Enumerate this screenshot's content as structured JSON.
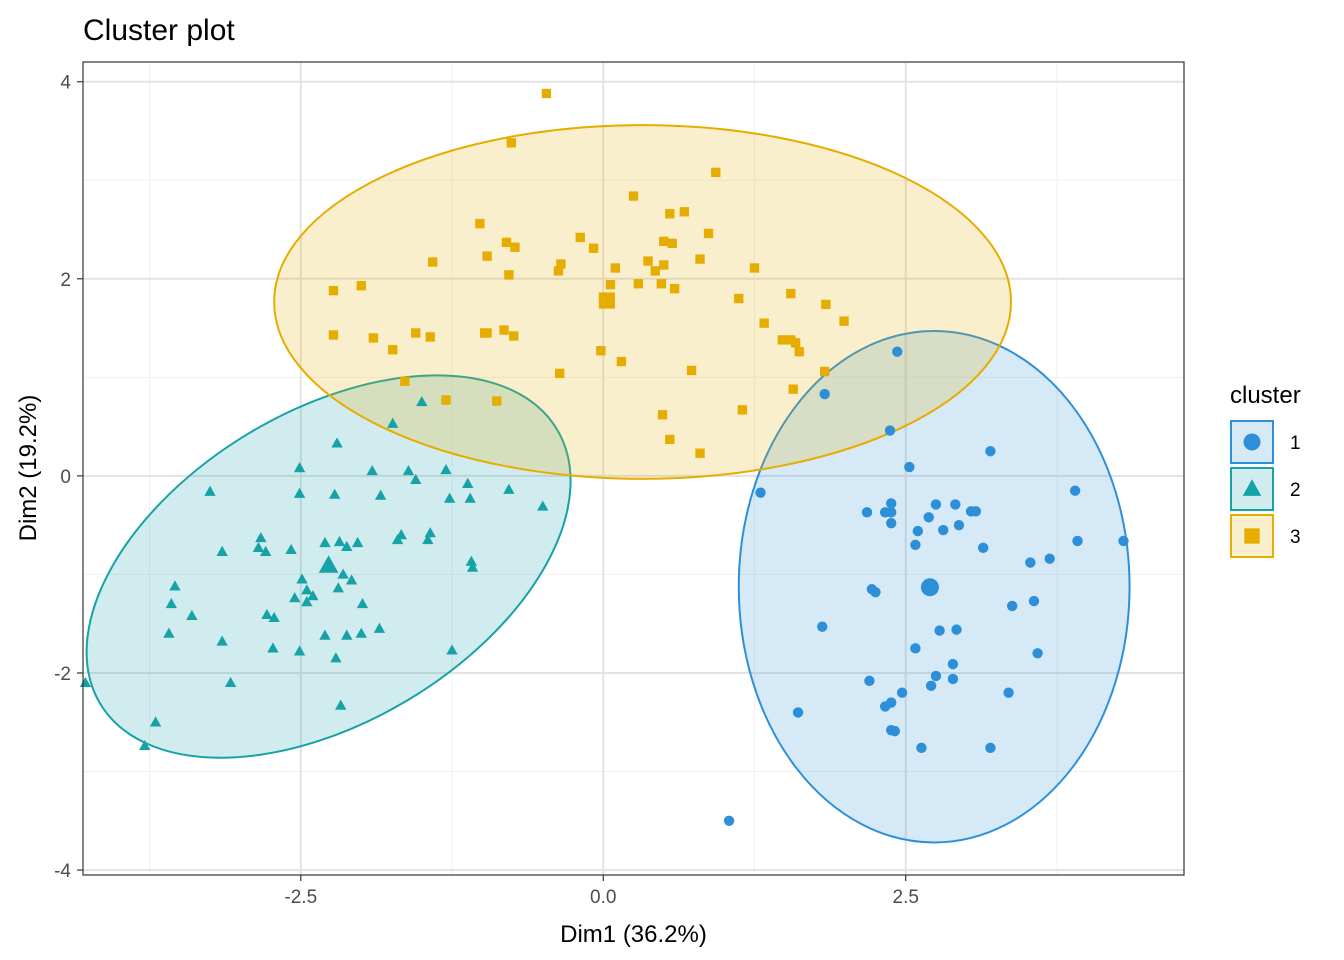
{
  "chart_data": {
    "type": "scatter",
    "title": "Cluster plot",
    "xlabel": "Dim1 (36.2%)",
    "ylabel": "Dim2 (19.2%)",
    "xlim": [
      -4.3,
      4.8
    ],
    "ylim": [
      -4.05,
      4.2
    ],
    "x_ticks": [
      -2.5,
      0.0,
      2.5
    ],
    "x_tick_labels": [
      "-2.5",
      "0.0",
      "2.5"
    ],
    "y_ticks": [
      -4,
      -2,
      0,
      2,
      4
    ],
    "y_tick_labels": [
      "-4",
      "-2",
      "0",
      "2",
      "4"
    ],
    "grid": true,
    "legend": {
      "title": "cluster",
      "position": "right",
      "entries": [
        {
          "label": "1",
          "series": 0
        },
        {
          "label": "2",
          "series": 1
        },
        {
          "label": "3",
          "series": 2
        }
      ]
    },
    "series": [
      {
        "name": "1",
        "color": "#2E8FD9",
        "marker": "circle",
        "center": [
          2.7,
          -1.13
        ],
        "ellipse_bounds": {
          "x": [
            1.12,
            4.35
          ],
          "y": [
            -3.72,
            1.47
          ]
        },
        "points": [
          [
            1.04,
            -3.5
          ],
          [
            1.3,
            -0.17
          ],
          [
            1.61,
            -2.4
          ],
          [
            1.81,
            -1.53
          ],
          [
            1.83,
            0.83
          ],
          [
            2.18,
            -0.37
          ],
          [
            2.2,
            -2.08
          ],
          [
            2.22,
            -1.15
          ],
          [
            2.25,
            -1.18
          ],
          [
            2.33,
            -0.37
          ],
          [
            2.33,
            -2.34
          ],
          [
            2.37,
            0.46
          ],
          [
            2.38,
            -0.28
          ],
          [
            2.38,
            -0.48
          ],
          [
            2.38,
            -0.37
          ],
          [
            2.38,
            -2.3
          ],
          [
            2.38,
            -2.58
          ],
          [
            2.41,
            -2.59
          ],
          [
            2.43,
            1.26
          ],
          [
            2.47,
            -2.2
          ],
          [
            2.53,
            0.09
          ],
          [
            2.58,
            -0.7
          ],
          [
            2.58,
            -1.75
          ],
          [
            2.6,
            -0.56
          ],
          [
            2.63,
            -2.76
          ],
          [
            2.69,
            -0.42
          ],
          [
            2.71,
            -2.13
          ],
          [
            2.75,
            -2.03
          ],
          [
            2.75,
            -0.29
          ],
          [
            2.78,
            -1.57
          ],
          [
            2.81,
            -0.55
          ],
          [
            2.89,
            -1.91
          ],
          [
            2.89,
            -2.06
          ],
          [
            2.91,
            -0.29
          ],
          [
            2.92,
            -1.56
          ],
          [
            2.94,
            -0.5
          ],
          [
            3.04,
            -0.36
          ],
          [
            3.08,
            -0.36
          ],
          [
            3.14,
            -0.73
          ],
          [
            3.2,
            -2.76
          ],
          [
            3.2,
            0.25
          ],
          [
            3.35,
            -2.2
          ],
          [
            3.38,
            -1.32
          ],
          [
            3.53,
            -0.88
          ],
          [
            3.56,
            -1.27
          ],
          [
            3.59,
            -1.8
          ],
          [
            3.69,
            -0.84
          ],
          [
            3.9,
            -0.15
          ],
          [
            3.92,
            -0.66
          ],
          [
            4.3,
            -0.66
          ]
        ]
      },
      {
        "name": "2",
        "color": "#17A2A8",
        "marker": "triangle",
        "center": [
          -2.27,
          -0.91
        ],
        "ellipse_bounds": {
          "x": [
            -4.27,
            -0.27
          ],
          "y": [
            -2.86,
            1.02
          ]
        },
        "points": [
          [
            -4.28,
            -2.1
          ],
          [
            -3.79,
            -2.74
          ],
          [
            -3.7,
            -2.5
          ],
          [
            -3.59,
            -1.6
          ],
          [
            -3.57,
            -1.3
          ],
          [
            -3.54,
            -1.12
          ],
          [
            -3.4,
            -1.42
          ],
          [
            -3.25,
            -0.16
          ],
          [
            -3.15,
            -1.68
          ],
          [
            -3.15,
            -0.77
          ],
          [
            -3.08,
            -2.1
          ],
          [
            -2.85,
            -0.73
          ],
          [
            -2.83,
            -0.63
          ],
          [
            -2.79,
            -0.77
          ],
          [
            -2.78,
            -1.41
          ],
          [
            -2.73,
            -1.75
          ],
          [
            -2.72,
            -1.44
          ],
          [
            -2.58,
            -0.75
          ],
          [
            -2.55,
            -1.24
          ],
          [
            -2.51,
            -1.78
          ],
          [
            -2.51,
            0.08
          ],
          [
            -2.51,
            -0.18
          ],
          [
            -2.49,
            -1.05
          ],
          [
            -2.45,
            -1.28
          ],
          [
            -2.45,
            -1.16
          ],
          [
            -2.4,
            -1.22
          ],
          [
            -2.3,
            -0.68
          ],
          [
            -2.3,
            -1.62
          ],
          [
            -2.27,
            -0.91
          ],
          [
            -2.22,
            -0.19
          ],
          [
            -2.21,
            -1.85
          ],
          [
            -2.2,
            0.33
          ],
          [
            -2.19,
            -1.14
          ],
          [
            -2.18,
            -0.67
          ],
          [
            -2.17,
            -2.33
          ],
          [
            -2.15,
            -1.0
          ],
          [
            -2.12,
            -0.72
          ],
          [
            -2.12,
            -1.62
          ],
          [
            -2.08,
            -1.06
          ],
          [
            -2.03,
            -0.68
          ],
          [
            -2.0,
            -1.6
          ],
          [
            -1.99,
            -1.3
          ],
          [
            -1.91,
            0.05
          ],
          [
            -1.85,
            -1.55
          ],
          [
            -1.84,
            -0.2
          ],
          [
            -1.74,
            0.53
          ],
          [
            -1.7,
            -0.65
          ],
          [
            -1.67,
            -0.6
          ],
          [
            -1.61,
            0.05
          ],
          [
            -1.55,
            -0.04
          ],
          [
            -1.5,
            0.75
          ],
          [
            -1.45,
            -0.65
          ],
          [
            -1.43,
            -0.58
          ],
          [
            -1.3,
            0.06
          ],
          [
            -1.27,
            -0.23
          ],
          [
            -1.12,
            -0.08
          ],
          [
            -1.1,
            -0.23
          ],
          [
            -1.09,
            -0.87
          ],
          [
            -1.08,
            -0.93
          ],
          [
            -0.78,
            -0.14
          ],
          [
            -0.5,
            -0.31
          ],
          [
            -1.25,
            -1.77
          ]
        ]
      },
      {
        "name": "3",
        "color": "#E6AD00",
        "marker": "square",
        "center": [
          0.03,
          1.78
        ],
        "ellipse_bounds": {
          "x": [
            -2.72,
            3.37
          ],
          "y": [
            -0.03,
            3.56
          ]
        },
        "points": [
          [
            -2.23,
            1.88
          ],
          [
            -2.23,
            1.43
          ],
          [
            -2.0,
            1.93
          ],
          [
            -1.9,
            1.4
          ],
          [
            -1.74,
            1.28
          ],
          [
            -1.64,
            0.96
          ],
          [
            -1.55,
            1.45
          ],
          [
            -1.43,
            1.41
          ],
          [
            -1.41,
            2.17
          ],
          [
            -1.3,
            0.77
          ],
          [
            -1.02,
            2.56
          ],
          [
            -0.98,
            1.45
          ],
          [
            -0.96,
            2.23
          ],
          [
            -0.96,
            1.45
          ],
          [
            -0.88,
            0.76
          ],
          [
            -0.82,
            1.48
          ],
          [
            -0.8,
            2.37
          ],
          [
            -0.78,
            2.04
          ],
          [
            -0.76,
            3.38
          ],
          [
            -0.74,
            1.42
          ],
          [
            -0.73,
            2.32
          ],
          [
            -0.47,
            3.88
          ],
          [
            -0.37,
            2.08
          ],
          [
            -0.36,
            1.04
          ],
          [
            -0.35,
            2.15
          ],
          [
            -0.19,
            2.42
          ],
          [
            -0.08,
            2.31
          ],
          [
            -0.02,
            1.27
          ],
          [
            0.03,
            1.78
          ],
          [
            0.06,
            1.94
          ],
          [
            0.1,
            2.11
          ],
          [
            0.15,
            1.16
          ],
          [
            0.25,
            2.84
          ],
          [
            0.29,
            1.95
          ],
          [
            0.37,
            2.18
          ],
          [
            0.43,
            2.08
          ],
          [
            0.48,
            1.95
          ],
          [
            0.49,
            0.62
          ],
          [
            0.5,
            2.38
          ],
          [
            0.5,
            2.14
          ],
          [
            0.55,
            0.37
          ],
          [
            0.55,
            2.66
          ],
          [
            0.57,
            2.36
          ],
          [
            0.59,
            1.9
          ],
          [
            0.67,
            2.68
          ],
          [
            0.73,
            1.07
          ],
          [
            0.8,
            0.23
          ],
          [
            0.8,
            2.2
          ],
          [
            0.87,
            2.46
          ],
          [
            0.93,
            3.08
          ],
          [
            1.12,
            1.8
          ],
          [
            1.15,
            0.67
          ],
          [
            1.25,
            2.11
          ],
          [
            1.48,
            1.38
          ],
          [
            1.55,
            1.38
          ],
          [
            1.57,
            0.88
          ],
          [
            1.59,
            1.35
          ],
          [
            1.62,
            1.26
          ],
          [
            1.83,
            1.06
          ],
          [
            1.84,
            1.74
          ],
          [
            1.99,
            1.57
          ],
          [
            1.55,
            1.85
          ],
          [
            1.33,
            1.55
          ]
        ]
      }
    ]
  }
}
